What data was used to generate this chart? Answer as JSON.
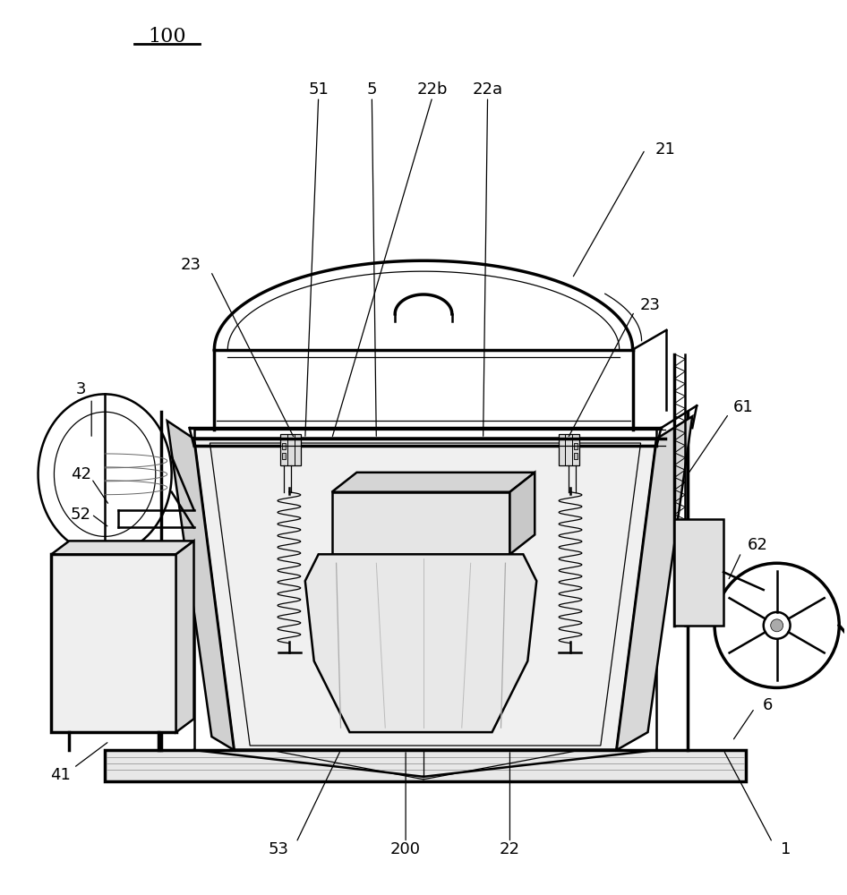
{
  "bg_color": "#ffffff",
  "line_color": "#000000",
  "fig_width": 9.46,
  "fig_height": 10.0,
  "dpi": 100,
  "lw_main": 1.8,
  "lw_thin": 0.9,
  "lw_thick": 2.5,
  "label_fs": 13,
  "title_fs": 16
}
